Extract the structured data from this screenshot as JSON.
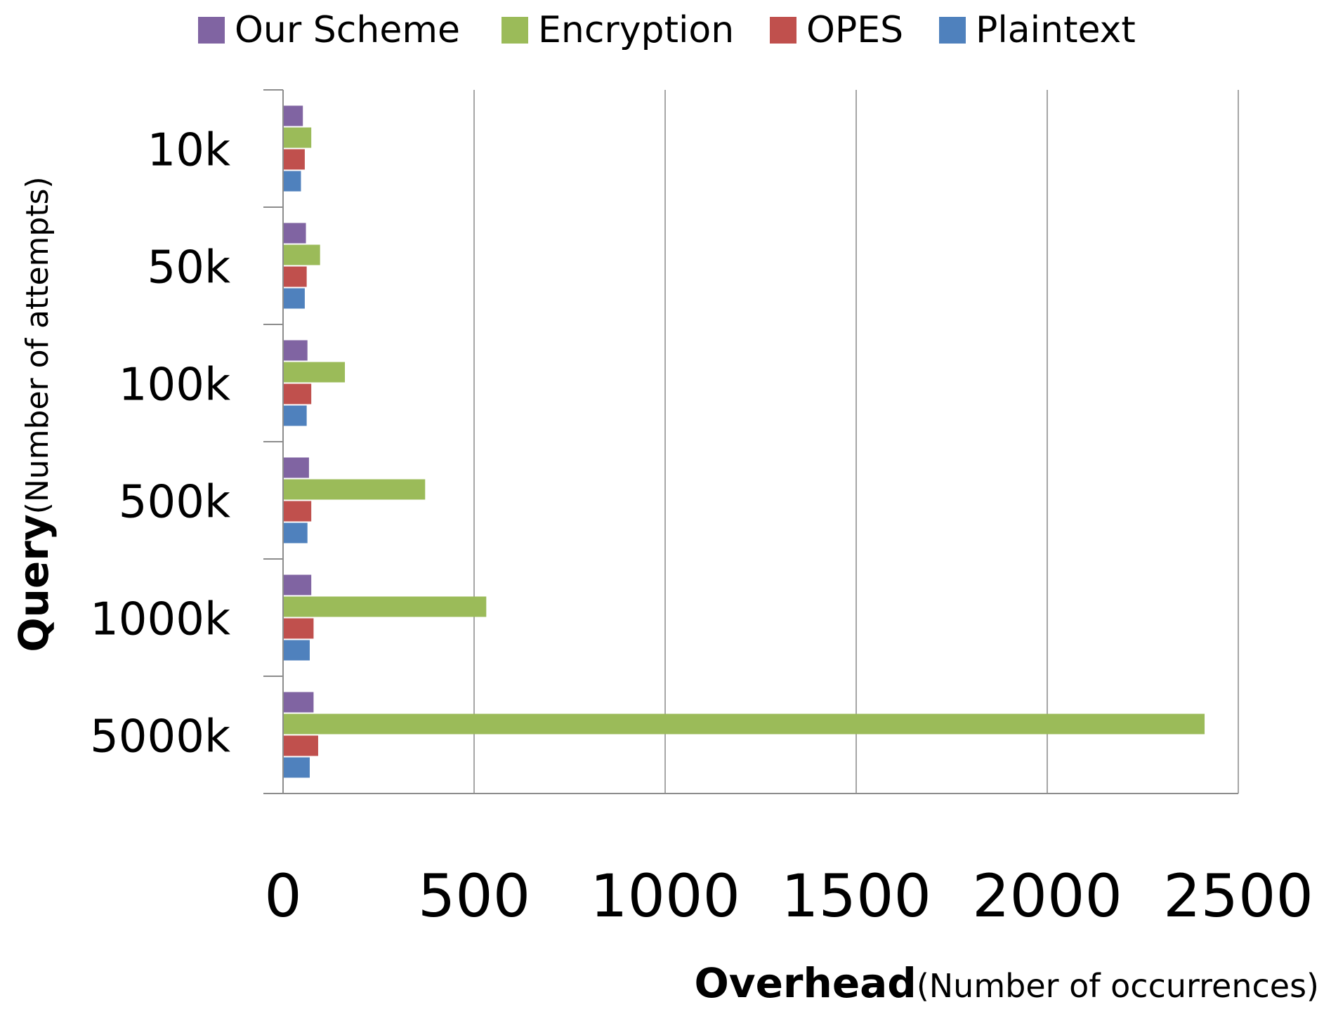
{
  "chart_data": {
    "type": "bar",
    "orientation": "horizontal",
    "categories": [
      "10k",
      "50k",
      "100k",
      "500k",
      "1000k",
      "5000k"
    ],
    "series": [
      {
        "name": "Our Scheme",
        "color": "#8064A2",
        "values": [
          50,
          58,
          62,
          66,
          72,
          78
        ]
      },
      {
        "name": "Encryption",
        "color": "#9BBB59",
        "values": [
          72,
          95,
          160,
          370,
          530,
          2410
        ]
      },
      {
        "name": "OPES",
        "color": "#C0504D",
        "values": [
          55,
          60,
          72,
          72,
          78,
          90
        ]
      },
      {
        "name": "Plaintext",
        "color": "#4F81BD",
        "values": [
          45,
          55,
          60,
          62,
          68,
          68
        ]
      }
    ],
    "xlim": [
      0,
      2500
    ],
    "xticks": [
      "0",
      "500",
      "1000",
      "1500",
      "2000",
      "2500"
    ],
    "xlabel_bold": "Overhead",
    "xlabel_rest": "(Number of occurrences)",
    "ylabel_bold": "Query",
    "ylabel_rest": "(Number of attempts)",
    "legend_position": "top",
    "grid": "vertical"
  }
}
